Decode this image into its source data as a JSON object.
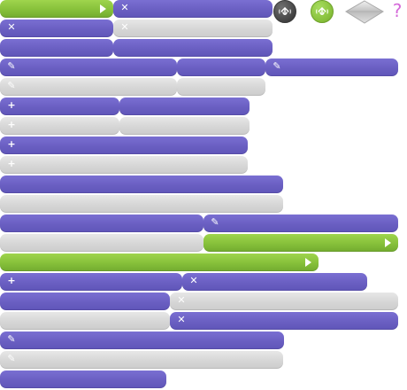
{
  "toolbar": {
    "buttons": [
      {
        "id": "move-dark",
        "icon": "drag-hand-icon",
        "color": "#444444"
      },
      {
        "id": "move-green",
        "icon": "drag-hand-icon",
        "color": "#86bf39"
      },
      {
        "id": "sort",
        "icon": "sort-diamond-icon",
        "color": "#cccccc"
      },
      {
        "id": "help",
        "icon": "help-icon",
        "label": "?",
        "color": "#d56ad9"
      }
    ]
  },
  "colors": {
    "purple": "#6a5fc2",
    "gray": "#d6d6d6",
    "green": "#86c03a"
  },
  "bars": {
    "rows": [
      {
        "color": "green",
        "end_icon": "play-icon"
      },
      {
        "color": "purple",
        "left_icon": "close-icon"
      },
      {
        "color": "purple",
        "left_icon": "close-icon"
      },
      {
        "color": "gray",
        "left_icon": "close-icon"
      },
      {
        "color": "purple"
      },
      {
        "color": "purple"
      },
      {
        "color": "purple",
        "left_icon": "pencil-icon"
      },
      {
        "color": "purple"
      },
      {
        "color": "purple",
        "left_icon": "pencil-icon"
      },
      {
        "color": "gray",
        "left_icon": "pencil-icon"
      },
      {
        "color": "gray"
      },
      {
        "color": "purple",
        "left_icon": "plus-icon"
      },
      {
        "color": "purple"
      },
      {
        "color": "gray",
        "left_icon": "plus-icon"
      },
      {
        "color": "gray"
      },
      {
        "color": "purple",
        "left_icon": "plus-icon"
      },
      {
        "color": "gray",
        "left_icon": "plus-icon"
      },
      {
        "color": "purple"
      },
      {
        "color": "gray"
      },
      {
        "color": "purple"
      },
      {
        "color": "purple",
        "left_icon": "pencil-icon"
      },
      {
        "color": "gray"
      },
      {
        "color": "green",
        "end_icon": "play-icon"
      },
      {
        "color": "green",
        "end_icon": "play-icon"
      },
      {
        "color": "purple",
        "left_icon": "plus-icon"
      },
      {
        "color": "purple",
        "left_icon": "close-icon"
      },
      {
        "color": "purple"
      },
      {
        "color": "gray",
        "left_icon": "close-icon"
      },
      {
        "color": "gray"
      },
      {
        "color": "purple",
        "left_icon": "close-icon"
      },
      {
        "color": "purple",
        "left_icon": "pencil-icon"
      },
      {
        "color": "gray",
        "left_icon": "pencil-icon"
      },
      {
        "color": "purple"
      }
    ]
  }
}
